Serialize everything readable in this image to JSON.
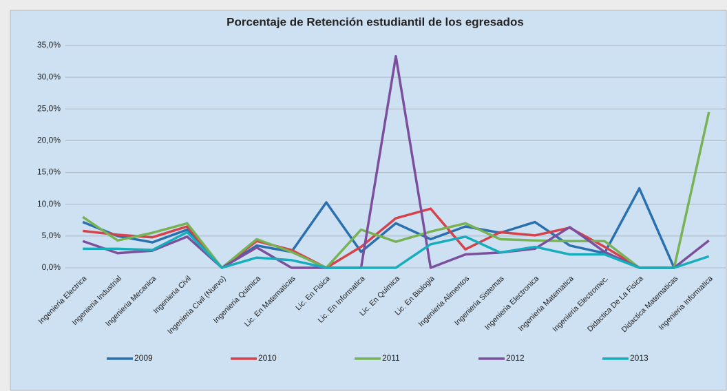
{
  "chart_data": {
    "type": "line",
    "title": "Porcentaje de Retención estudiantil de los egresados",
    "categories": [
      "Ingenieria Electrica",
      "Ingenieria Industrial",
      "Ingenieria Mecanica",
      "Ingenieria Civil",
      "Ingenieria Civil (Nuevo)",
      "Ingenieria Quimica",
      "Lic. En Matematicas",
      "Lic. En Fisica",
      "Lic. En Informatica",
      "Lic. En Quimica",
      "Lic. En Biologia",
      "Ingenieria Alimentos",
      "Ingenieria Sistemas",
      "Ingenieria Electronica",
      "Ingenieria Matematica",
      "Ingenieria Electromec.",
      "Didactica De La Fisica",
      "Didactica Matematicas",
      "Ingenieria Informatica"
    ],
    "series": [
      {
        "name": "2009",
        "color": "#2a70ae",
        "values": [
          7.2,
          5.0,
          4.0,
          6.0,
          0,
          3.5,
          2.5,
          10.3,
          2.5,
          7.0,
          4.5,
          6.5,
          5.5,
          7.2,
          3.5,
          2.3,
          12.5,
          0,
          null
        ]
      },
      {
        "name": "2010",
        "color": "#d6424b",
        "values": [
          5.8,
          5.2,
          4.8,
          6.5,
          0,
          4.2,
          2.8,
          0,
          3.3,
          7.8,
          9.3,
          2.9,
          5.6,
          5.1,
          6.3,
          3.3,
          0,
          0,
          null
        ]
      },
      {
        "name": "2011",
        "color": "#77b255",
        "values": [
          8.0,
          4.3,
          5.5,
          7.0,
          0,
          4.5,
          2.5,
          0,
          6.0,
          4.1,
          5.7,
          7.0,
          4.5,
          4.3,
          4.2,
          4.2,
          0,
          0,
          24.5
        ]
      },
      {
        "name": "2012",
        "color": "#7b4f9d",
        "values": [
          4.2,
          2.3,
          2.7,
          4.9,
          0,
          3.2,
          0,
          0,
          0,
          33.3,
          0,
          2.1,
          2.4,
          3.0,
          6.4,
          2.5,
          0,
          0,
          4.3
        ]
      },
      {
        "name": "2013",
        "color": "#16adbd",
        "values": [
          3.0,
          3.0,
          2.8,
          5.6,
          0,
          1.6,
          1.2,
          0,
          0,
          0,
          3.7,
          4.9,
          2.4,
          3.3,
          2.1,
          2.1,
          0,
          0,
          1.8
        ]
      }
    ],
    "ylim": [
      0,
      35
    ],
    "yticks": [
      {
        "value": 0,
        "label": "0,0%"
      },
      {
        "value": 5,
        "label": "5,0%"
      },
      {
        "value": 10,
        "label": "10,0%"
      },
      {
        "value": 15,
        "label": "15,0%"
      },
      {
        "value": 20,
        "label": "20,0%"
      },
      {
        "value": 25,
        "label": "25,0%"
      },
      {
        "value": 30,
        "label": "30,0%"
      },
      {
        "value": 35,
        "label": "35,0%"
      }
    ],
    "grid": true
  }
}
